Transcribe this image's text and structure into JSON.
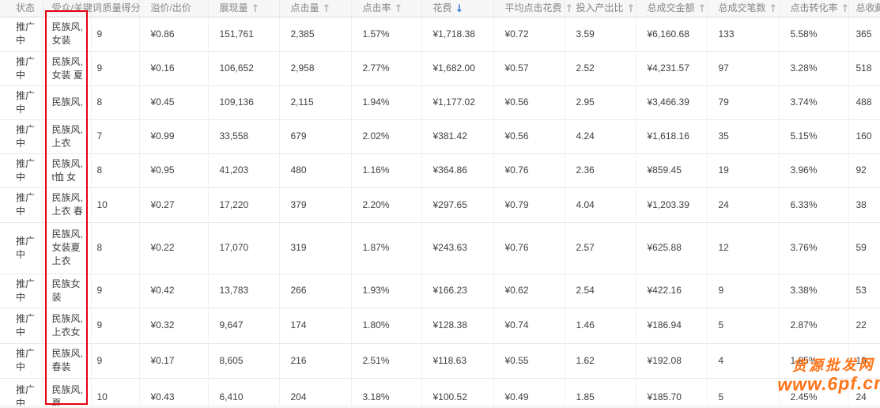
{
  "watermark": {
    "line1": "货源批发网",
    "line2": "www.6pf.cn"
  },
  "icons": {
    "sort_up": "↑",
    "sort_down": "↓"
  },
  "colors": {
    "annotation_red": "#e60012",
    "watermark_orange": "#ff7519",
    "sort_active_blue": "#3577d4",
    "sort_inactive_gray": "#b3b3b3"
  },
  "table": {
    "sorted_by": "花费",
    "sort_direction": "desc",
    "columns": [
      {
        "id": "status",
        "label": "状态",
        "sort": "none"
      },
      {
        "id": "keyword",
        "label": "受众/关键词",
        "sort": "none"
      },
      {
        "id": "quality_score",
        "label": "质量得分",
        "sort": "none"
      },
      {
        "id": "bid",
        "label": "溢价/出价",
        "sort": "none"
      },
      {
        "id": "impressions",
        "label": "展现量",
        "sort": "up"
      },
      {
        "id": "clicks",
        "label": "点击量",
        "sort": "up"
      },
      {
        "id": "ctr",
        "label": "点击率",
        "sort": "up"
      },
      {
        "id": "cost",
        "label": "花费",
        "sort": "down-active"
      },
      {
        "id": "avg_click_cost",
        "label": "平均点击花费",
        "sort": "up"
      },
      {
        "id": "roi",
        "label": "投入产出比",
        "sort": "up"
      },
      {
        "id": "total_sales_amount",
        "label": "总成交金额",
        "sort": "up"
      },
      {
        "id": "total_orders",
        "label": "总成交笔数",
        "sort": "up"
      },
      {
        "id": "conversion_rate",
        "label": "点击转化率",
        "sort": "up"
      },
      {
        "id": "total_favorites",
        "label": "总收藏",
        "sort": "none"
      }
    ],
    "rows": [
      {
        "status": "推广中",
        "keyword": "民族风,女装",
        "quality_score": "9",
        "bid": "¥0.86",
        "impressions": "151,761",
        "clicks": "2,385",
        "ctr": "1.57%",
        "cost": "¥1,718.38",
        "avg_click_cost": "¥0.72",
        "roi": "3.59",
        "total_sales_amount": "¥6,160.68",
        "total_orders": "133",
        "conversion_rate": "5.58%",
        "total_favorites": "365"
      },
      {
        "status": "推广中",
        "keyword": "民族风,女装 夏",
        "quality_score": "9",
        "bid": "¥0.16",
        "impressions": "106,652",
        "clicks": "2,958",
        "ctr": "2.77%",
        "cost": "¥1,682.00",
        "avg_click_cost": "¥0.57",
        "roi": "2.52",
        "total_sales_amount": "¥4,231.57",
        "total_orders": "97",
        "conversion_rate": "3.28%",
        "total_favorites": "518"
      },
      {
        "status": "推广中",
        "keyword": "民族风,",
        "quality_score": "8",
        "bid": "¥0.45",
        "impressions": "109,136",
        "clicks": "2,115",
        "ctr": "1.94%",
        "cost": "¥1,177.02",
        "avg_click_cost": "¥0.56",
        "roi": "2.95",
        "total_sales_amount": "¥3,466.39",
        "total_orders": "79",
        "conversion_rate": "3.74%",
        "total_favorites": "488"
      },
      {
        "status": "推广中",
        "keyword": "民族风,上衣",
        "quality_score": "7",
        "bid": "¥0.99",
        "impressions": "33,558",
        "clicks": "679",
        "ctr": "2.02%",
        "cost": "¥381.42",
        "avg_click_cost": "¥0.56",
        "roi": "4.24",
        "total_sales_amount": "¥1,618.16",
        "total_orders": "35",
        "conversion_rate": "5.15%",
        "total_favorites": "160"
      },
      {
        "status": "推广中",
        "keyword": "民族风, t恤 女",
        "quality_score": "8",
        "bid": "¥0.95",
        "impressions": "41,203",
        "clicks": "480",
        "ctr": "1.16%",
        "cost": "¥364.86",
        "avg_click_cost": "¥0.76",
        "roi": "2.36",
        "total_sales_amount": "¥859.45",
        "total_orders": "19",
        "conversion_rate": "3.96%",
        "total_favorites": "92"
      },
      {
        "status": "推广中",
        "keyword": "民族风,上衣 春",
        "quality_score": "10",
        "bid": "¥0.27",
        "impressions": "17,220",
        "clicks": "379",
        "ctr": "2.20%",
        "cost": "¥297.65",
        "avg_click_cost": "¥0.79",
        "roi": "4.04",
        "total_sales_amount": "¥1,203.39",
        "total_orders": "24",
        "conversion_rate": "6.33%",
        "total_favorites": "38"
      },
      {
        "status": "推广中",
        "keyword": "民族风,女装夏 上衣",
        "quality_score": "8",
        "bid": "¥0.22",
        "impressions": "17,070",
        "clicks": "319",
        "ctr": "1.87%",
        "cost": "¥243.63",
        "avg_click_cost": "¥0.76",
        "roi": "2.57",
        "total_sales_amount": "¥625.88",
        "total_orders": "12",
        "conversion_rate": "3.76%",
        "total_favorites": "59"
      },
      {
        "status": "推广中",
        "keyword": "民族女装",
        "quality_score": "9",
        "bid": "¥0.42",
        "impressions": "13,783",
        "clicks": "266",
        "ctr": "1.93%",
        "cost": "¥166.23",
        "avg_click_cost": "¥0.62",
        "roi": "2.54",
        "total_sales_amount": "¥422.16",
        "total_orders": "9",
        "conversion_rate": "3.38%",
        "total_favorites": "53"
      },
      {
        "status": "推广中",
        "keyword": "民族风,上衣女",
        "quality_score": "9",
        "bid": "¥0.32",
        "impressions": "9,647",
        "clicks": "174",
        "ctr": "1.80%",
        "cost": "¥128.38",
        "avg_click_cost": "¥0.74",
        "roi": "1.46",
        "total_sales_amount": "¥186.94",
        "total_orders": "5",
        "conversion_rate": "2.87%",
        "total_favorites": "22"
      },
      {
        "status": "推广中",
        "keyword": "民族风,春装",
        "quality_score": "9",
        "bid": "¥0.17",
        "impressions": "8,605",
        "clicks": "216",
        "ctr": "2.51%",
        "cost": "¥118.63",
        "avg_click_cost": "¥0.55",
        "roi": "1.62",
        "total_sales_amount": "¥192.08",
        "total_orders": "4",
        "conversion_rate": "1.85%",
        "total_favorites": "19"
      },
      {
        "status": "推广中",
        "keyword": "民族风,夏",
        "quality_score": "10",
        "bid": "¥0.43",
        "impressions": "6,410",
        "clicks": "204",
        "ctr": "3.18%",
        "cost": "¥100.52",
        "avg_click_cost": "¥0.49",
        "roi": "1.85",
        "total_sales_amount": "¥185.70",
        "total_orders": "5",
        "conversion_rate": "2.45%",
        "total_favorites": "24"
      }
    ]
  }
}
